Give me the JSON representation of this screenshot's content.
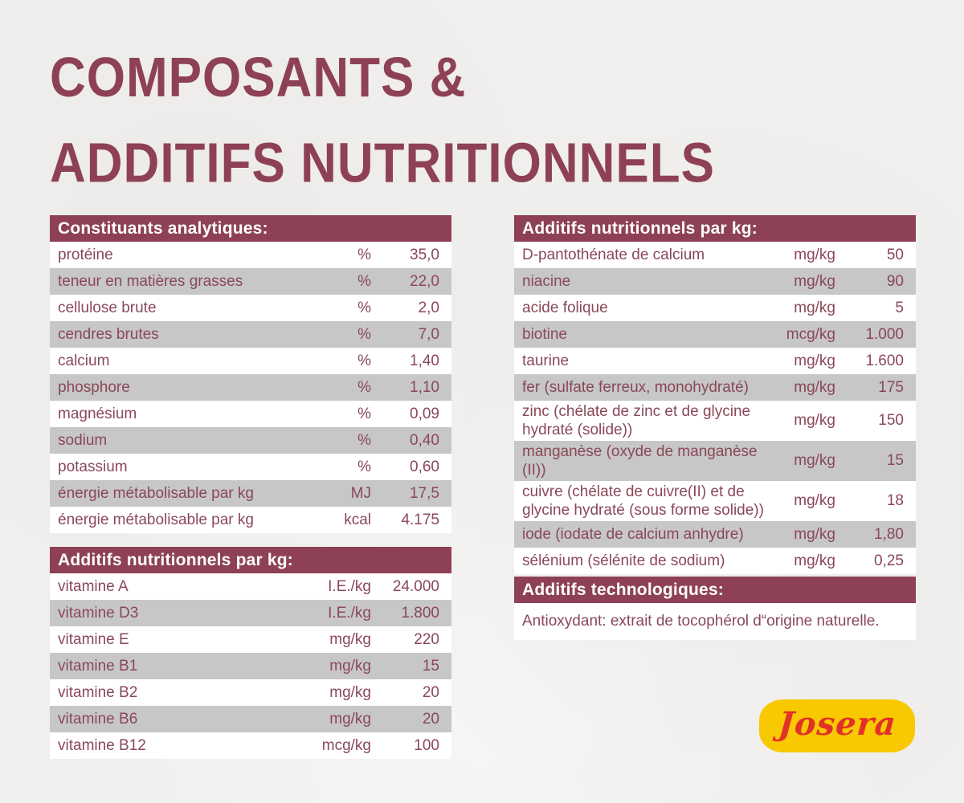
{
  "title": {
    "lines": [
      "COMPOSANTS &",
      "ADDITIFS NUTRITIONNELS"
    ]
  },
  "colors": {
    "maroon": "#8e4156",
    "row_text": "#8a4859",
    "gray_row": "#c7c7c7",
    "background": "#f0efed",
    "logo_yellow": "#f8c800",
    "logo_red": "#e23128"
  },
  "tables": {
    "analytical": {
      "header": "Constituants analytiques:",
      "rows": [
        {
          "label": "protéine",
          "unit": "%",
          "value": "35,0"
        },
        {
          "label": "teneur en matières grasses",
          "unit": "%",
          "value": "22,0"
        },
        {
          "label": "cellulose brute",
          "unit": "%",
          "value": "2,0"
        },
        {
          "label": "cendres brutes",
          "unit": "%",
          "value": "7,0"
        },
        {
          "label": "calcium",
          "unit": "%",
          "value": "1,40"
        },
        {
          "label": "phosphore",
          "unit": "%",
          "value": "1,10"
        },
        {
          "label": "magnésium",
          "unit": "%",
          "value": "0,09"
        },
        {
          "label": "sodium",
          "unit": "%",
          "value": "0,40"
        },
        {
          "label": "potassium",
          "unit": "%",
          "value": "0,60"
        },
        {
          "label": "énergie métabolisable par kg",
          "unit": "MJ",
          "value": "17,5"
        },
        {
          "label": "énergie métabolisable par kg",
          "unit": "kcal",
          "value": "4.175"
        }
      ]
    },
    "vitamins": {
      "header": "Additifs nutritionnels par kg:",
      "rows": [
        {
          "label": "vitamine A",
          "unit": "I.E./kg",
          "value": "24.000"
        },
        {
          "label": "vitamine D3",
          "unit": "I.E./kg",
          "value": "1.800"
        },
        {
          "label": "vitamine E",
          "unit": "mg/kg",
          "value": "220"
        },
        {
          "label": "vitamine B1",
          "unit": "mg/kg",
          "value": "15"
        },
        {
          "label": "vitamine B2",
          "unit": "mg/kg",
          "value": "20"
        },
        {
          "label": "vitamine B6",
          "unit": "mg/kg",
          "value": "20"
        },
        {
          "label": "vitamine B12",
          "unit": "mcg/kg",
          "value": "100"
        }
      ]
    },
    "minerals": {
      "header": "Additifs nutritionnels par kg:",
      "rows": [
        {
          "label": "D-pantothénate de calcium",
          "unit": "mg/kg",
          "value": "50"
        },
        {
          "label": "niacine",
          "unit": "mg/kg",
          "value": "90"
        },
        {
          "label": "acide folique",
          "unit": "mg/kg",
          "value": "5"
        },
        {
          "label": "biotine",
          "unit": "mcg/kg",
          "value": "1.000"
        },
        {
          "label": "taurine",
          "unit": "mg/kg",
          "value": "1.600"
        },
        {
          "label": "fer (sulfate ferreux, monohydraté)",
          "unit": "mg/kg",
          "value": "175"
        },
        {
          "label": "zinc (chélate de zinc et de glycine hydraté (solide))",
          "unit": "mg/kg",
          "value": "150"
        },
        {
          "label": "manganèse (oxyde de manganèse (II))",
          "unit": "mg/kg",
          "value": "15"
        },
        {
          "label": "cuivre (chélate de cuivre(II) et de gly­cine hydraté (sous forme solide))",
          "unit": "mg/kg",
          "value": "18"
        },
        {
          "label": "iode (iodate de calcium anhydre)",
          "unit": "mg/kg",
          "value": "1,80"
        },
        {
          "label": "sélénium (sélénite de sodium)",
          "unit": "mg/kg",
          "value": "0,25"
        }
      ]
    },
    "technological": {
      "header": "Additifs technologiques:",
      "note": "Antioxydant: extrait de tocophérol d“origine naturelle."
    }
  },
  "logo": {
    "brand": "Josera"
  }
}
